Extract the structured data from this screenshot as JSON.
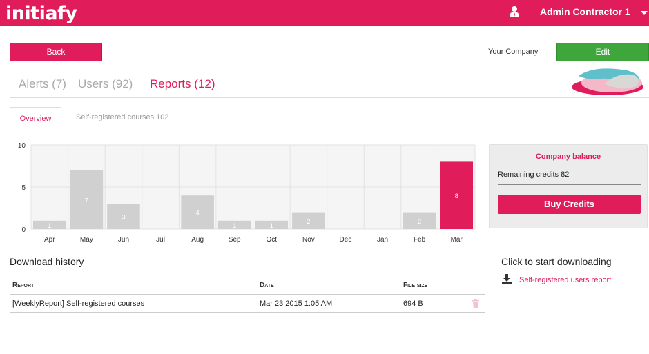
{
  "header": {
    "logo_text": "initiafy",
    "user_icon": "user-icon",
    "user_name": "Admin Contractor 1",
    "caret_icon": "caret-down-icon"
  },
  "toolbar": {
    "back_label": "Back",
    "company_name": "Your Company",
    "edit_label": "Edit"
  },
  "tabs": [
    {
      "label": "Alerts (7)",
      "active": false
    },
    {
      "label": "Users (92)",
      "active": false
    },
    {
      "label": "Reports (12)",
      "active": true
    }
  ],
  "subtabs": [
    {
      "label": "Overview",
      "active": true
    },
    {
      "label": "Self-registered courses 102",
      "active": false
    }
  ],
  "chart_data": {
    "type": "bar",
    "categories": [
      "Apr",
      "May",
      "Jun",
      "Jul",
      "Aug",
      "Sep",
      "Oct",
      "Nov",
      "Dec",
      "Jan",
      "Feb",
      "Mar"
    ],
    "values": [
      1,
      7,
      3,
      0,
      4,
      1,
      1,
      2,
      0,
      0,
      2,
      8
    ],
    "highlight_index": 11,
    "ylim": [
      0,
      10
    ],
    "yticks": [
      0,
      5,
      10
    ],
    "title": "",
    "xlabel": "",
    "ylabel": "",
    "grid": true,
    "colors": {
      "bar": "#d0d0d0",
      "highlight": "#e01d5a",
      "background": "#f5f5f5"
    }
  },
  "balance": {
    "title": "Company balance",
    "credits_text": "Remaining credits 82",
    "buy_label": "Buy Credits"
  },
  "download_history": {
    "title": "Download history",
    "columns": [
      "Report",
      "Date",
      "File size"
    ],
    "rows": [
      {
        "report": "[WeeklyReport] Self-registered courses",
        "date": "Mar 23 2015 1:05 AM",
        "size": "694 B"
      }
    ]
  },
  "downloads": {
    "title": "Click to start downloading",
    "link_label": "Self-registered users report",
    "icon": "download-icon"
  },
  "colors": {
    "brand": "#e01d5a",
    "edit": "#3ea63a"
  }
}
